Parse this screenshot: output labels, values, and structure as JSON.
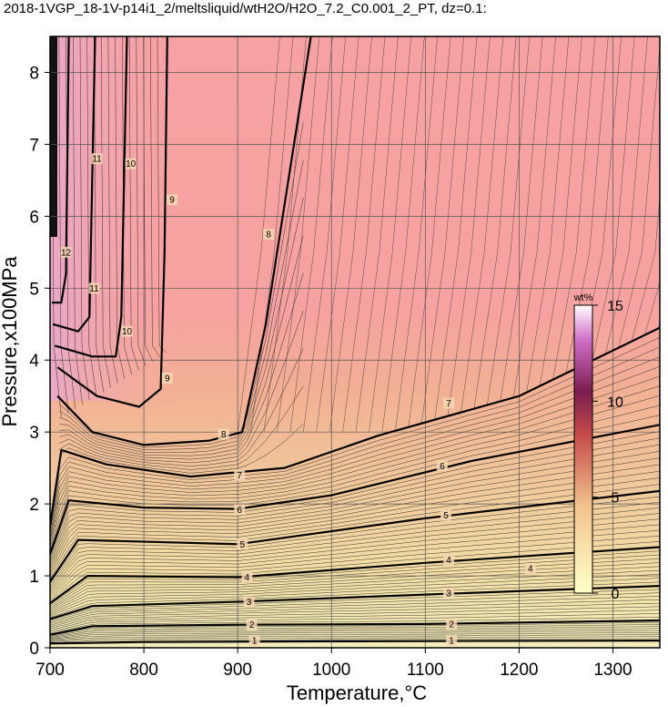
{
  "chart_data": {
    "type": "heatmap",
    "title": "2018-1VGP_18-1V-p14i1_2/meltsliquid/wtH2O/H2O_7.2_C0.001_2_PT, dz=0.1:",
    "xlabel": "Temperature,°C",
    "ylabel": "Pressure,x100MPa",
    "xlim": [
      700,
      1350
    ],
    "ylim": [
      0,
      8.5
    ],
    "xticks": [
      700,
      800,
      900,
      1000,
      1100,
      1200,
      1300
    ],
    "yticks": [
      0,
      1,
      2,
      3,
      4,
      5,
      6,
      7,
      8
    ],
    "grid": true,
    "colorbar": {
      "unit": "wt%",
      "ticks": [
        0,
        5,
        10,
        15
      ],
      "range": [
        0,
        15
      ],
      "colors": [
        "#ffffc8",
        "#f2c48e",
        "#c64a4a",
        "#7a1e50",
        "#d070c8",
        "#ffffff"
      ]
    },
    "contour_labels_major": [
      {
        "value": 1,
        "points": [
          [
            918,
            0.1
          ],
          [
            1128,
            0.1
          ]
        ]
      },
      {
        "value": 2,
        "points": [
          [
            915,
            0.32
          ],
          [
            1128,
            0.33
          ]
        ]
      },
      {
        "value": 3,
        "points": [
          [
            912,
            0.64
          ],
          [
            1125,
            0.76
          ]
        ]
      },
      {
        "value": 4,
        "points": [
          [
            910,
            0.98
          ],
          [
            1125,
            1.22
          ],
          [
            1212,
            1.1
          ]
        ]
      },
      {
        "value": 5,
        "points": [
          [
            905,
            1.44
          ],
          [
            1122,
            1.84
          ]
        ]
      },
      {
        "value": 6,
        "points": [
          [
            902,
            1.92
          ],
          [
            1118,
            2.53
          ]
        ]
      },
      {
        "value": 7,
        "points": [
          [
            902,
            2.4
          ],
          [
            1125,
            3.4
          ]
        ]
      },
      {
        "value": 8,
        "points": [
          [
            885,
            2.97
          ],
          [
            933,
            5.75
          ]
        ]
      },
      {
        "value": 9,
        "points": [
          [
            825,
            3.75
          ],
          [
            830,
            6.23
          ]
        ]
      },
      {
        "value": 10,
        "points": [
          [
            782,
            4.4
          ],
          [
            786,
            6.73
          ]
        ]
      },
      {
        "value": 11,
        "points": [
          [
            747,
            5.0
          ],
          [
            750,
            6.8
          ]
        ]
      },
      {
        "value": 12,
        "points": [
          [
            717,
            5.5
          ]
        ]
      }
    ],
    "contours_bold": [
      {
        "value": 1,
        "points": [
          [
            700,
            0.06
          ],
          [
            800,
            0.08
          ],
          [
            1000,
            0.09
          ],
          [
            1350,
            0.1
          ]
        ]
      },
      {
        "value": 2,
        "points": [
          [
            700,
            0.18
          ],
          [
            745,
            0.3
          ],
          [
            900,
            0.32
          ],
          [
            1100,
            0.33
          ],
          [
            1350,
            0.38
          ]
        ]
      },
      {
        "value": 3,
        "points": [
          [
            700,
            0.4
          ],
          [
            745,
            0.58
          ],
          [
            900,
            0.64
          ],
          [
            1100,
            0.74
          ],
          [
            1350,
            0.86
          ]
        ]
      },
      {
        "value": 4,
        "points": [
          [
            700,
            0.62
          ],
          [
            740,
            1.0
          ],
          [
            900,
            0.98
          ],
          [
            1100,
            1.18
          ],
          [
            1350,
            1.4
          ]
        ]
      },
      {
        "value": 5,
        "points": [
          [
            700,
            0.92
          ],
          [
            730,
            1.5
          ],
          [
            900,
            1.44
          ],
          [
            1100,
            1.8
          ],
          [
            1350,
            2.18
          ]
        ]
      },
      {
        "value": 6,
        "points": [
          [
            700,
            1.3
          ],
          [
            720,
            2.05
          ],
          [
            800,
            1.95
          ],
          [
            900,
            1.93
          ],
          [
            1000,
            2.12
          ],
          [
            1150,
            2.6
          ],
          [
            1350,
            3.1
          ]
        ]
      },
      {
        "value": 7,
        "points": [
          [
            700,
            1.7
          ],
          [
            712,
            2.75
          ],
          [
            760,
            2.55
          ],
          [
            850,
            2.38
          ],
          [
            950,
            2.5
          ],
          [
            1050,
            2.95
          ],
          [
            1200,
            3.5
          ],
          [
            1350,
            4.45
          ]
        ]
      },
      {
        "value": 8,
        "points": [
          [
            708,
            3.5
          ],
          [
            745,
            3.0
          ],
          [
            800,
            2.82
          ],
          [
            870,
            2.88
          ],
          [
            905,
            3.0
          ],
          [
            930,
            4.5
          ],
          [
            978,
            8.5
          ]
        ]
      },
      {
        "value": 9,
        "points": [
          [
            708,
            3.9
          ],
          [
            750,
            3.5
          ],
          [
            795,
            3.35
          ],
          [
            818,
            3.6
          ],
          [
            822,
            5.5
          ],
          [
            825,
            8.5
          ]
        ]
      },
      {
        "value": 10,
        "points": [
          [
            705,
            4.2
          ],
          [
            745,
            4.05
          ],
          [
            770,
            4.05
          ],
          [
            776,
            4.6
          ],
          [
            782,
            8.5
          ]
        ]
      },
      {
        "value": 11,
        "points": [
          [
            703,
            4.5
          ],
          [
            730,
            4.4
          ],
          [
            742,
            4.6
          ],
          [
            748,
            8.5
          ]
        ]
      },
      {
        "value": 12,
        "points": [
          [
            702,
            4.8
          ],
          [
            712,
            4.8
          ],
          [
            717,
            5.2
          ],
          [
            720,
            8.5
          ]
        ]
      }
    ]
  }
}
